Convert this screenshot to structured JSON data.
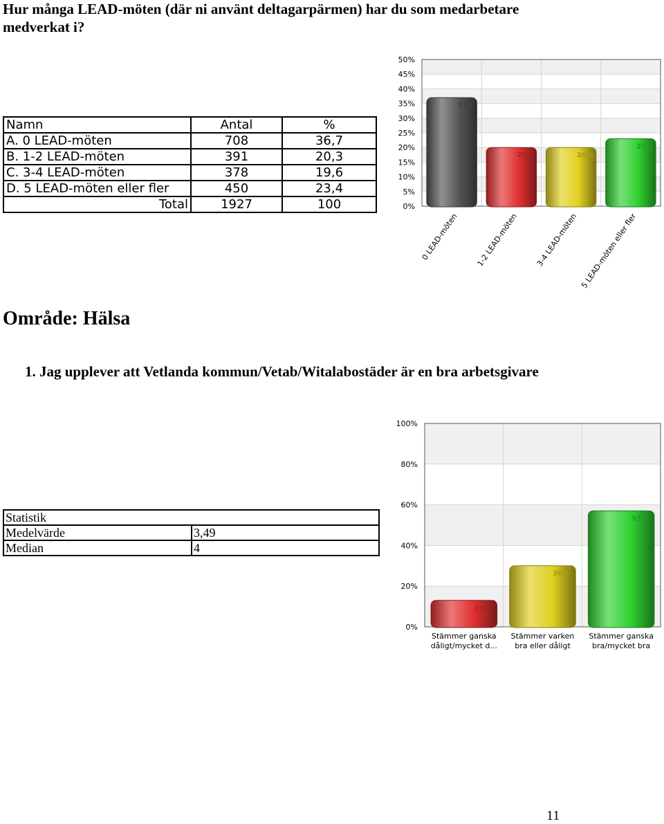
{
  "question_title": "Hur många LEAD-möten (där ni använt deltagarpärmen) har du som medarbetare medverkat i?",
  "table1": {
    "headers": [
      "Namn",
      "Antal",
      "%"
    ],
    "rows": [
      [
        "A. 0 LEAD-möten",
        "708",
        "36,7"
      ],
      [
        "B. 1-2 LEAD-möten",
        "391",
        "20,3"
      ],
      [
        "C. 3-4 LEAD-möten",
        "378",
        "19,6"
      ],
      [
        "D. 5 LEAD-möten eller fler",
        "450",
        "23,4"
      ]
    ],
    "total": [
      "Total",
      "1927",
      "100"
    ]
  },
  "area_heading": "Område: Hälsa",
  "question1": "1.  Jag upplever att Vetlanda kommun/Vetab/Witalabostäder är en bra arbetsgivare",
  "stats_table": {
    "title": "Statistik",
    "rows": [
      [
        "Medelvärde",
        "3,49"
      ],
      [
        "Median",
        "4"
      ]
    ]
  },
  "page_number": "11",
  "chart_data": [
    {
      "type": "bar",
      "categories": [
        "0 LEAD-möten",
        "1-2 LEAD-möten",
        "3-4 LEAD-möten",
        "5 LEAD-möten eller fler"
      ],
      "values": [
        37,
        20,
        20,
        23
      ],
      "data_labels": [
        "37%",
        "20%",
        "20%",
        "23%"
      ],
      "colors": [
        "#555555",
        "#e03030",
        "#e0d020",
        "#30d030"
      ],
      "yticks": [
        "0%",
        "5%",
        "10%",
        "15%",
        "20%",
        "25%",
        "30%",
        "35%",
        "40%",
        "45%",
        "50%"
      ],
      "ylim": [
        0,
        50
      ],
      "grid": true
    },
    {
      "type": "bar",
      "categories": [
        "Stämmer ganska dåligt/mycket d...",
        "Stämmer varken bra eller dåligt",
        "Stämmer ganska bra/mycket bra"
      ],
      "category_lines": [
        [
          "Stämmer ganska",
          "dåligt/mycket d..."
        ],
        [
          "Stämmer varken",
          "bra eller dåligt"
        ],
        [
          "Stämmer ganska",
          "bra/mycket bra"
        ]
      ],
      "values": [
        13,
        30,
        57
      ],
      "data_labels": [
        "13%",
        "30%",
        "57%"
      ],
      "colors": [
        "#e03030",
        "#e0d020",
        "#30d030"
      ],
      "yticks": [
        "0%",
        "20%",
        "40%",
        "60%",
        "80%",
        "100%"
      ],
      "ylim": [
        0,
        100
      ],
      "grid": true
    }
  ]
}
